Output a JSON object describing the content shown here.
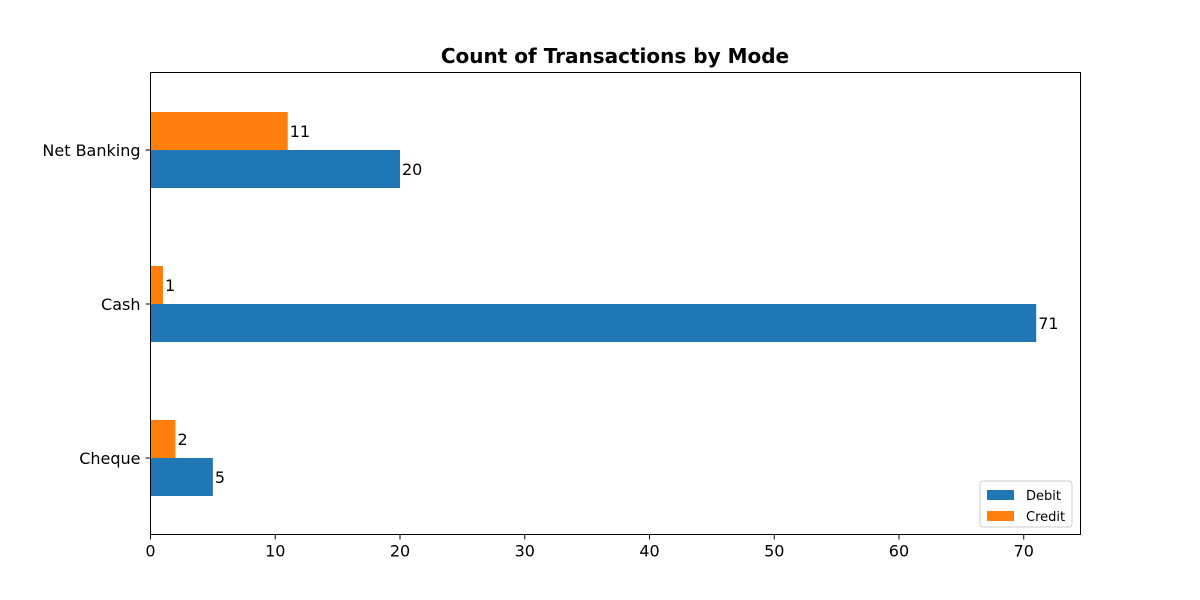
{
  "chart_data": {
    "type": "bar",
    "orientation": "horizontal",
    "title": "Count of Transactions by Mode",
    "xlabel": "",
    "ylabel": "",
    "categories": [
      "Cheque",
      "Cash",
      "Net Banking"
    ],
    "series": [
      {
        "name": "Debit",
        "color": "#1f77b4",
        "values": [
          5,
          71,
          20
        ]
      },
      {
        "name": "Credit",
        "color": "#ff7f0e",
        "values": [
          2,
          1,
          11
        ]
      }
    ],
    "xlim": [
      0,
      74.55
    ],
    "xticks": [
      "0",
      "10",
      "20",
      "30",
      "40",
      "50",
      "60",
      "70"
    ],
    "grid": false,
    "legend": {
      "position": "lower-right"
    },
    "data_labels": true
  }
}
